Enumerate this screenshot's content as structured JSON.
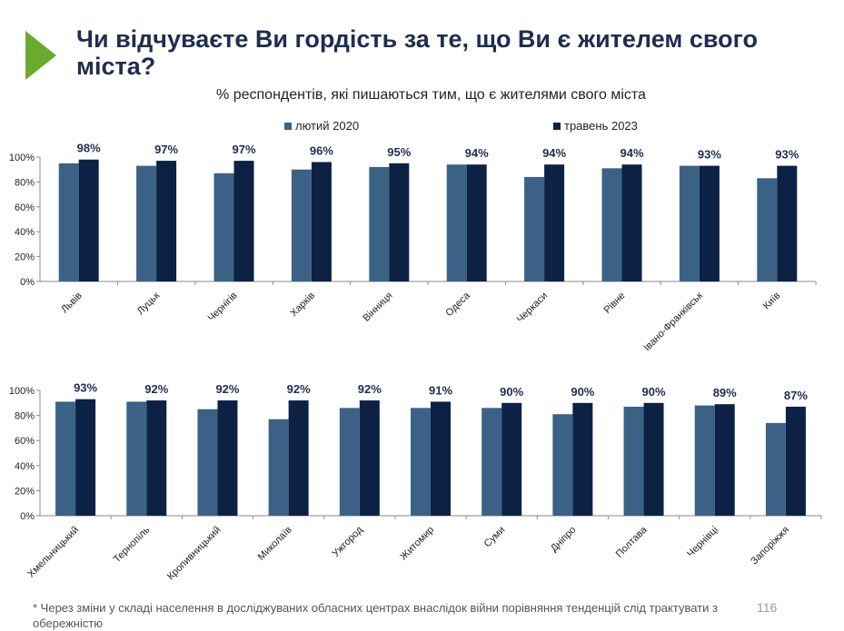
{
  "title": "Чи відчуваєте Ви гордість за те, що Ви є жителем свого міста?",
  "subtitle": "% респондентів, які пишаються тим, що є жителями свого міста",
  "footnote": "* Через зміни у складі населення в досліджуваних обласних центрах внаслідок війни порівняння тенденцій слід трактувати з обережністю",
  "page_number": "116",
  "colors": {
    "series1": "#3b6286",
    "series2": "#0d2145",
    "arrow": "#6aab2e",
    "title": "#1f2d4e"
  },
  "chart_data": [
    {
      "type": "bar",
      "categories": [
        "Львів",
        "Луцьк",
        "Чернігів",
        "Харків",
        "Вінниця",
        "Одеса",
        "Черкаси",
        "Рівне",
        "Івано-Франківськ",
        "Київ"
      ],
      "series": [
        {
          "name": "лютий 2020",
          "values": [
            95,
            93,
            87,
            90,
            92,
            94,
            84,
            91,
            93,
            83
          ]
        },
        {
          "name": "травень 2023",
          "values": [
            98,
            97,
            97,
            96,
            95,
            94,
            94,
            94,
            93,
            93
          ]
        }
      ],
      "data_labels": [
        "98%",
        "97%",
        "97%",
        "96%",
        "95%",
        "94%",
        "94%",
        "94%",
        "93%",
        "93%"
      ],
      "ylim": [
        0,
        100
      ],
      "yticks": [
        "0%",
        "20%",
        "40%",
        "60%",
        "80%",
        "100%"
      ],
      "legend": "top-center",
      "grid": false
    },
    {
      "type": "bar",
      "categories": [
        "Хмельницький",
        "Тернопіль",
        "Кропивницький",
        "Миколаїв",
        "Ужгород",
        "Житомир",
        "Суми",
        "Дніпро",
        "Полтава",
        "Чернівці",
        "Запоріжжя"
      ],
      "series": [
        {
          "name": "лютий 2020",
          "values": [
            91,
            91,
            85,
            77,
            86,
            86,
            86,
            81,
            87,
            88,
            74
          ]
        },
        {
          "name": "травень 2023",
          "values": [
            93,
            92,
            92,
            92,
            92,
            91,
            90,
            90,
            90,
            89,
            87
          ]
        }
      ],
      "data_labels": [
        "93%",
        "92%",
        "92%",
        "92%",
        "92%",
        "91%",
        "90%",
        "90%",
        "90%",
        "89%",
        "87%"
      ],
      "ylim": [
        0,
        100
      ],
      "yticks": [
        "0%",
        "20%",
        "40%",
        "60%",
        "80%",
        "100%"
      ],
      "grid": false
    }
  ]
}
